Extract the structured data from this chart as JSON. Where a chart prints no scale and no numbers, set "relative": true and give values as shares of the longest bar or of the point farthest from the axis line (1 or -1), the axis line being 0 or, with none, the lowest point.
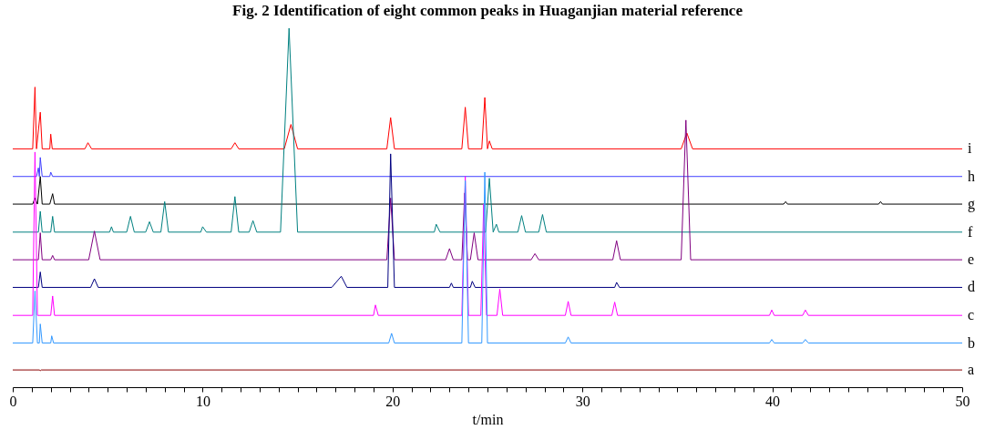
{
  "chart_data": {
    "type": "line",
    "title": "Fig. 2  Identification of eight common peaks in Huaganjian material reference",
    "xlabel": "t/min",
    "relative": true,
    "xlim": [
      0,
      50
    ],
    "xticks": [
      0,
      {
        "value": 1,
        "label": null
      },
      {
        "value": 2,
        "label": null
      },
      {
        "value": 3,
        "label": null
      },
      {
        "value": 4,
        "label": null
      },
      {
        "value": 5,
        "label": null
      },
      {
        "value": 6,
        "label": null
      },
      {
        "value": 7,
        "label": null
      },
      {
        "value": 8,
        "label": null
      },
      {
        "value": 9,
        "label": null
      },
      10,
      {
        "value": 11,
        "label": null
      },
      {
        "value": 12,
        "label": null
      },
      {
        "value": 13,
        "label": null
      },
      {
        "value": 14,
        "label": null
      },
      {
        "value": 15,
        "label": null
      },
      {
        "value": 16,
        "label": null
      },
      {
        "value": 17,
        "label": null
      },
      {
        "value": 18,
        "label": null
      },
      {
        "value": 19,
        "label": null
      },
      20,
      {
        "value": 21,
        "label": null
      },
      {
        "value": 22,
        "label": null
      },
      {
        "value": 23,
        "label": null
      },
      {
        "value": 24,
        "label": null
      },
      {
        "value": 25,
        "label": null
      },
      {
        "value": 26,
        "label": null
      },
      {
        "value": 27,
        "label": null
      },
      {
        "value": 28,
        "label": null
      },
      {
        "value": 29,
        "label": null
      },
      30,
      {
        "value": 31,
        "label": null
      },
      {
        "value": 32,
        "label": null
      },
      {
        "value": 33,
        "label": null
      },
      {
        "value": 34,
        "label": null
      },
      {
        "value": 35,
        "label": null
      },
      {
        "value": 36,
        "label": null
      },
      {
        "value": 37,
        "label": null
      },
      {
        "value": 38,
        "label": null
      },
      {
        "value": 39,
        "label": null
      },
      40,
      {
        "value": 41,
        "label": null
      },
      {
        "value": 42,
        "label": null
      },
      {
        "value": 43,
        "label": null
      },
      {
        "value": 44,
        "label": null
      },
      {
        "value": 45,
        "label": null
      },
      {
        "value": 46,
        "label": null
      },
      {
        "value": 47,
        "label": null
      },
      {
        "value": 48,
        "label": null
      },
      {
        "value": 49,
        "label": null
      },
      50
    ],
    "tick_labels": "x",
    "series": [
      {
        "name": "i",
        "color": "#ff0000",
        "x": [
          0,
          1.05,
          1.17,
          1.25,
          1.45,
          1.55,
          1.95,
          2.0,
          2.08,
          3.8,
          3.96,
          4.15,
          11.5,
          11.7,
          11.9,
          14.3,
          14.65,
          15.0,
          19.7,
          19.9,
          20.1,
          23.65,
          23.83,
          24.0,
          24.7,
          24.86,
          25.0,
          25.1,
          25.25,
          35.2,
          35.5,
          35.8,
          50
        ],
        "values": [
          0.664,
          0.664,
          0.836,
          0.664,
          0.766,
          0.664,
          0.664,
          0.705,
          0.664,
          0.664,
          0.681,
          0.664,
          0.664,
          0.681,
          0.664,
          0.664,
          0.732,
          0.664,
          0.664,
          0.751,
          0.664,
          0.664,
          0.78,
          0.664,
          0.664,
          0.807,
          0.664,
          0.686,
          0.664,
          0.664,
          0.708,
          0.664,
          0.664
        ]
      },
      {
        "name": "h",
        "color": "#4040ff",
        "x": [
          0,
          1.25,
          1.35,
          1.4,
          1.45,
          1.55,
          1.95,
          2.0,
          2.1,
          50
        ],
        "values": [
          0.587,
          0.587,
          0.611,
          0.587,
          0.64,
          0.587,
          0.587,
          0.599,
          0.587,
          0.587
        ]
      },
      {
        "name": "g",
        "color": "#000000",
        "x": [
          0,
          1.05,
          1.17,
          1.3,
          1.45,
          1.55,
          1.95,
          2.1,
          2.2,
          40.6,
          40.7,
          40.8,
          45.6,
          45.7,
          45.8,
          50
        ],
        "values": [
          0.51,
          0.51,
          0.527,
          0.51,
          0.587,
          0.51,
          0.51,
          0.539,
          0.51,
          0.51,
          0.517,
          0.51,
          0.51,
          0.517,
          0.51,
          0.51
        ]
      },
      {
        "name": "f",
        "color": "#008080",
        "x": [
          0,
          1.35,
          1.45,
          1.55,
          2.0,
          2.1,
          2.2,
          5.1,
          5.2,
          5.3,
          6.0,
          6.2,
          6.4,
          7.0,
          7.2,
          7.4,
          7.8,
          8.0,
          8.2,
          9.9,
          10.0,
          10.2,
          11.5,
          11.7,
          11.9,
          12.45,
          12.65,
          12.85,
          14.1,
          14.55,
          15.0,
          22.2,
          22.3,
          22.5,
          24.9,
          25.1,
          25.3,
          25.47,
          25.6,
          26.6,
          26.8,
          27.0,
          27.7,
          27.9,
          28.1,
          50
        ],
        "values": [
          0.432,
          0.432,
          0.49,
          0.432,
          0.432,
          0.476,
          0.432,
          0.432,
          0.447,
          0.432,
          0.432,
          0.476,
          0.432,
          0.432,
          0.461,
          0.432,
          0.432,
          0.517,
          0.432,
          0.432,
          0.447,
          0.432,
          0.432,
          0.531,
          0.432,
          0.432,
          0.464,
          0.432,
          0.432,
          1.0,
          0.432,
          0.432,
          0.454,
          0.432,
          0.432,
          0.582,
          0.432,
          0.454,
          0.432,
          0.432,
          0.478,
          0.432,
          0.432,
          0.481,
          0.432,
          0.432
        ]
      },
      {
        "name": "e",
        "color": "#800080",
        "x": [
          0,
          1.35,
          1.45,
          1.55,
          2.0,
          2.1,
          2.2,
          4.0,
          4.3,
          4.6,
          19.7,
          19.9,
          20.1,
          22.8,
          23.0,
          23.2,
          23.65,
          23.8,
          23.95,
          24.1,
          24.3,
          24.5,
          27.3,
          27.5,
          27.7,
          31.6,
          31.8,
          32.0,
          35.2,
          35.45,
          35.7,
          50
        ],
        "values": [
          0.355,
          0.355,
          0.43,
          0.355,
          0.355,
          0.367,
          0.355,
          0.355,
          0.435,
          0.355,
          0.355,
          0.527,
          0.355,
          0.355,
          0.386,
          0.355,
          0.355,
          0.541,
          0.355,
          0.355,
          0.43,
          0.355,
          0.355,
          0.372,
          0.355,
          0.355,
          0.408,
          0.355,
          0.355,
          0.744,
          0.355,
          0.355
        ]
      },
      {
        "name": "d",
        "color": "#000080",
        "x": [
          0,
          1.35,
          1.45,
          1.55,
          4.1,
          4.3,
          4.5,
          16.8,
          17.3,
          17.6,
          19.75,
          19.9,
          20.1,
          23.0,
          23.1,
          23.2,
          24.1,
          24.2,
          24.35,
          31.7,
          31.8,
          31.95,
          50
        ],
        "values": [
          0.278,
          0.278,
          0.321,
          0.278,
          0.278,
          0.302,
          0.278,
          0.278,
          0.309,
          0.278,
          0.278,
          0.65,
          0.278,
          0.278,
          0.29,
          0.278,
          0.278,
          0.295,
          0.278,
          0.278,
          0.292,
          0.278,
          0.278
        ]
      },
      {
        "name": "c",
        "color": "#ff00ff",
        "x": [
          0,
          1.05,
          1.17,
          1.3,
          2.0,
          2.1,
          2.2,
          19.0,
          19.1,
          19.25,
          23.65,
          23.83,
          24.0,
          24.65,
          24.8,
          24.95,
          25.5,
          25.65,
          25.8,
          29.1,
          29.25,
          29.4,
          31.55,
          31.7,
          31.85,
          39.85,
          39.97,
          40.1,
          41.6,
          41.74,
          41.9,
          50
        ],
        "values": [
          0.2,
          0.2,
          0.655,
          0.2,
          0.2,
          0.254,
          0.2,
          0.2,
          0.229,
          0.2,
          0.2,
          0.587,
          0.2,
          0.2,
          0.51,
          0.2,
          0.2,
          0.273,
          0.2,
          0.2,
          0.239,
          0.2,
          0.2,
          0.237,
          0.2,
          0.2,
          0.215,
          0.2,
          0.2,
          0.215,
          0.2,
          0.2
        ]
      },
      {
        "name": "b",
        "color": "#3399ff",
        "x": [
          0,
          1.05,
          1.17,
          1.3,
          1.4,
          1.45,
          1.55,
          2.0,
          2.05,
          2.15,
          19.8,
          19.95,
          20.1,
          23.65,
          23.83,
          24.0,
          24.7,
          24.86,
          25.0,
          29.1,
          29.25,
          29.4,
          39.85,
          39.97,
          40.1,
          41.6,
          41.74,
          41.9,
          50
        ],
        "values": [
          0.123,
          0.123,
          0.268,
          0.123,
          0.123,
          0.176,
          0.123,
          0.123,
          0.143,
          0.123,
          0.123,
          0.15,
          0.123,
          0.123,
          0.575,
          0.123,
          0.123,
          0.599,
          0.123,
          0.123,
          0.14,
          0.123,
          0.123,
          0.133,
          0.123,
          0.123,
          0.133,
          0.123,
          0.123
        ]
      },
      {
        "name": "a",
        "color": "#8b0000",
        "x": [
          0,
          1.4,
          1.45,
          1.5,
          50
        ],
        "values": [
          0.048,
          0.048,
          0.046,
          0.048,
          0.048
        ]
      }
    ]
  }
}
